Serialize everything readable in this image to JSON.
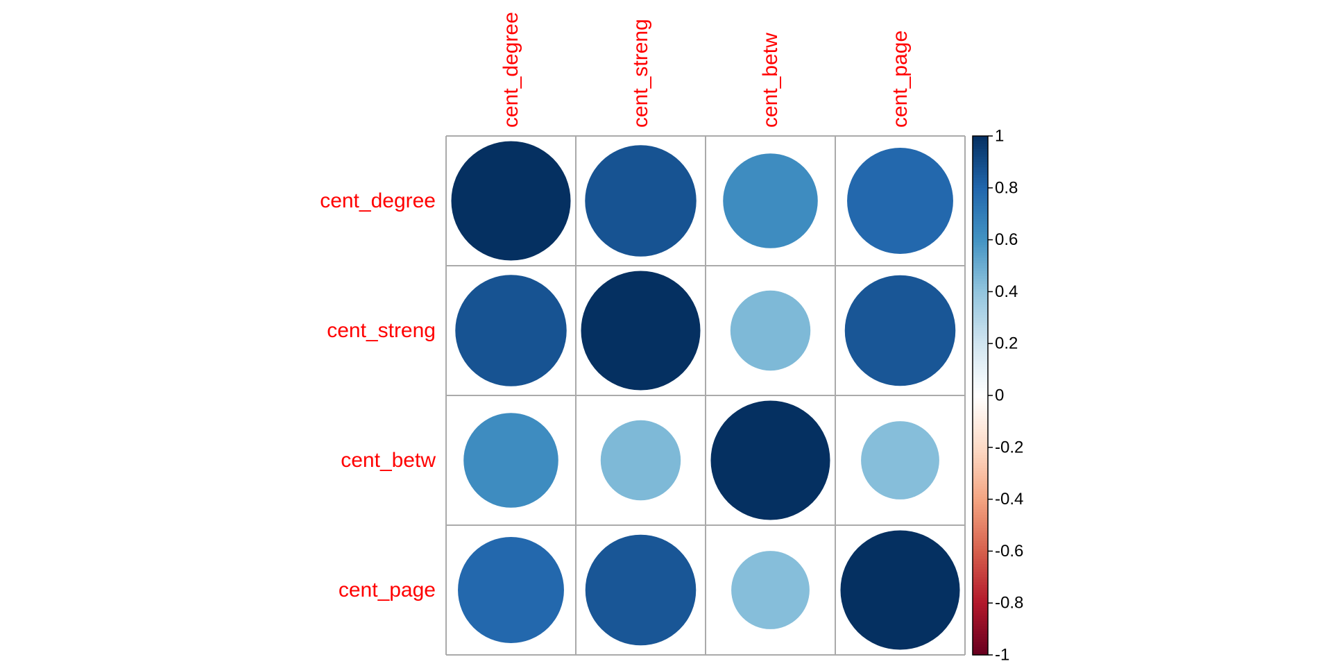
{
  "chart_data": {
    "type": "heatmap",
    "title": "",
    "variables": [
      "cent_degree",
      "cent_streng",
      "cent_betw",
      "cent_page"
    ],
    "matrix": [
      [
        1.0,
        0.87,
        0.63,
        0.79
      ],
      [
        0.87,
        1.0,
        0.45,
        0.86
      ],
      [
        0.63,
        0.45,
        1.0,
        0.43
      ],
      [
        0.79,
        0.86,
        0.43,
        1.0
      ]
    ],
    "cell_shape": "circle",
    "label_color": "#ff0000",
    "grid_color": "#aaaaaa",
    "legend": {
      "position": "right",
      "range": [
        -1,
        1
      ],
      "ticks": [
        "1",
        "0.8",
        "0.6",
        "0.4",
        "0.2",
        "0",
        "-0.2",
        "-0.4",
        "-0.6",
        "-0.8",
        "-1"
      ]
    },
    "palette": {
      "stops": [
        {
          "value": -1.0,
          "color": "#67001f"
        },
        {
          "value": -0.8,
          "color": "#b2182b"
        },
        {
          "value": -0.6,
          "color": "#d6604d"
        },
        {
          "value": -0.4,
          "color": "#f4a582"
        },
        {
          "value": -0.2,
          "color": "#fddbc7"
        },
        {
          "value": 0.0,
          "color": "#ffffff"
        },
        {
          "value": 0.2,
          "color": "#d1e5f0"
        },
        {
          "value": 0.4,
          "color": "#92c5de"
        },
        {
          "value": 0.6,
          "color": "#4393c3"
        },
        {
          "value": 0.8,
          "color": "#2166ac"
        },
        {
          "value": 1.0,
          "color": "#053061"
        }
      ]
    }
  }
}
